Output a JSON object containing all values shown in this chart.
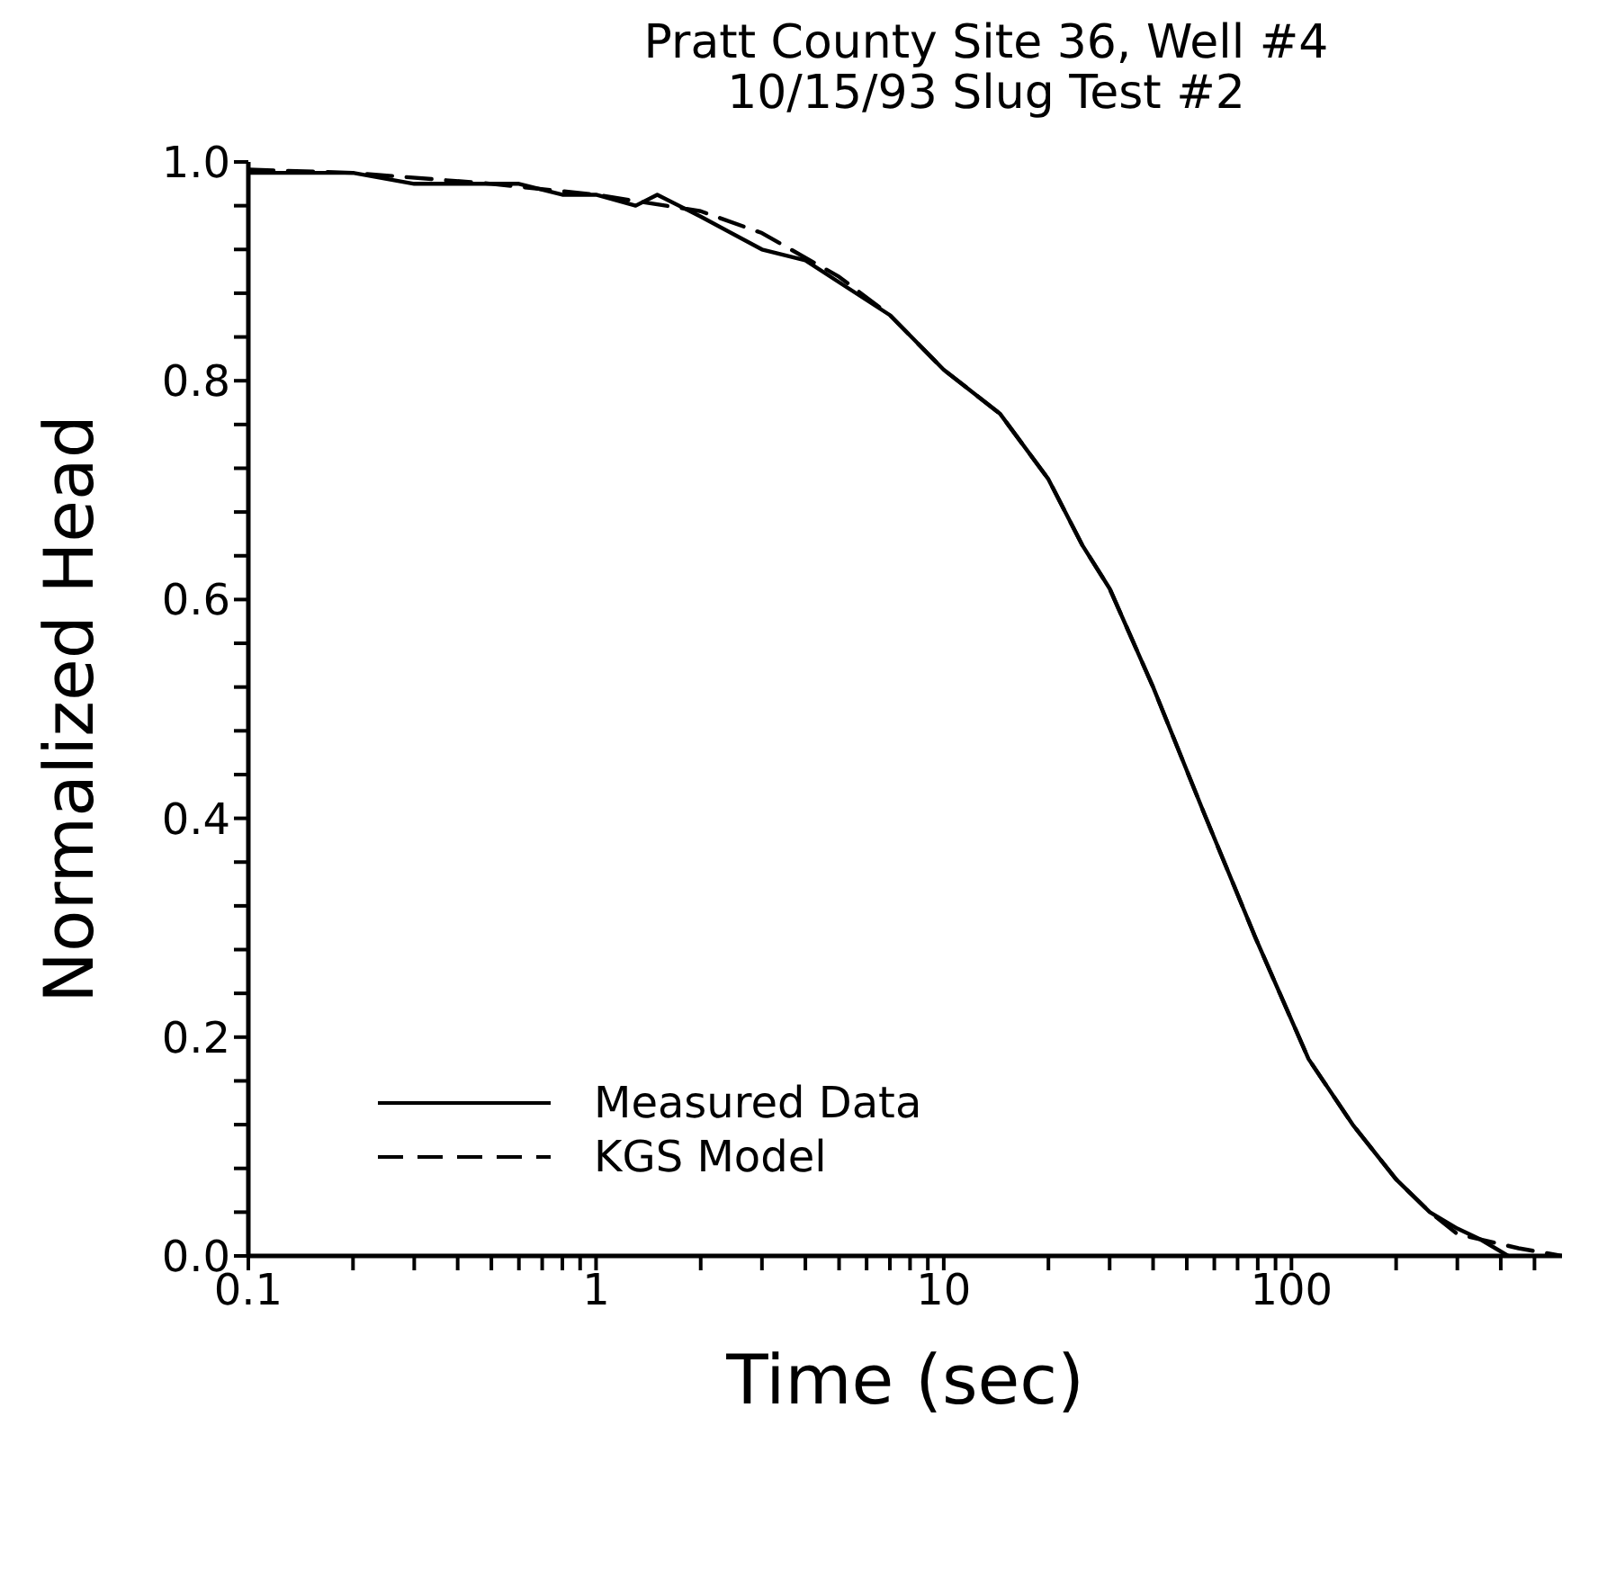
{
  "chart_data": {
    "type": "line",
    "title": "Pratt County Site 36, Well #4",
    "subtitle": "10/15/93 Slug Test #2",
    "xlabel": "Time (sec)",
    "ylabel": "Normalized Head",
    "log": "x",
    "xlim": [
      0.1,
      600
    ],
    "ylim": [
      0,
      1
    ],
    "xticks": [
      0.1,
      {
        "value": 0.2,
        "label": null
      },
      {
        "value": 0.3,
        "label": null
      },
      {
        "value": 0.4,
        "label": null
      },
      {
        "value": 0.5,
        "label": null
      },
      {
        "value": 0.6,
        "label": null
      },
      {
        "value": 0.7,
        "label": null
      },
      {
        "value": 0.8,
        "label": null
      },
      {
        "value": 0.9,
        "label": null
      },
      1,
      {
        "value": 2,
        "label": null
      },
      {
        "value": 3,
        "label": null
      },
      {
        "value": 4,
        "label": null
      },
      {
        "value": 5,
        "label": null
      },
      {
        "value": 6,
        "label": null
      },
      {
        "value": 7,
        "label": null
      },
      {
        "value": 8,
        "label": null
      },
      {
        "value": 9,
        "label": null
      },
      10,
      {
        "value": 20,
        "label": null
      },
      {
        "value": 30,
        "label": null
      },
      {
        "value": 40,
        "label": null
      },
      {
        "value": 50,
        "label": null
      },
      {
        "value": 60,
        "label": null
      },
      {
        "value": 70,
        "label": null
      },
      {
        "value": 80,
        "label": null
      },
      {
        "value": 90,
        "label": null
      },
      100,
      {
        "value": 200,
        "label": null
      },
      {
        "value": 300,
        "label": null
      },
      {
        "value": 400,
        "label": null
      },
      {
        "value": 500,
        "label": null
      }
    ],
    "yticks": [
      {
        "value": 0,
        "label": "0.0"
      },
      {
        "value": 0.04,
        "label": null
      },
      {
        "value": 0.08,
        "label": null
      },
      {
        "value": 0.12,
        "label": null
      },
      {
        "value": 0.16,
        "label": null
      },
      0.2,
      {
        "value": 0.24,
        "label": null
      },
      {
        "value": 0.28,
        "label": null
      },
      {
        "value": 0.32,
        "label": null
      },
      {
        "value": 0.36,
        "label": null
      },
      0.4,
      {
        "value": 0.44,
        "label": null
      },
      {
        "value": 0.48,
        "label": null
      },
      {
        "value": 0.52,
        "label": null
      },
      {
        "value": 0.56,
        "label": null
      },
      0.6,
      {
        "value": 0.64,
        "label": null
      },
      {
        "value": 0.68,
        "label": null
      },
      {
        "value": 0.72,
        "label": null
      },
      {
        "value": 0.76,
        "label": null
      },
      0.8,
      {
        "value": 0.84,
        "label": null
      },
      {
        "value": 0.88,
        "label": null
      },
      {
        "value": 0.92,
        "label": null
      },
      {
        "value": 0.96,
        "label": null
      },
      {
        "value": 1,
        "label": "1.0"
      }
    ],
    "legend": "bottom left",
    "marker": "none",
    "series": [
      {
        "name": "Measured Data",
        "color": "#000000",
        "line_style": "solid",
        "x": [
          0.1,
          0.2,
          0.3,
          0.6,
          0.8,
          1,
          1.3,
          1.5,
          2,
          3,
          4,
          5,
          7,
          10,
          14.5,
          20,
          25,
          30,
          40,
          56,
          79,
          112,
          150,
          200,
          250,
          300,
          350,
          420
        ],
        "values": [
          0.99,
          0.99,
          0.98,
          0.98,
          0.97,
          0.97,
          0.96,
          0.97,
          0.95,
          0.92,
          0.91,
          0.89,
          0.86,
          0.81,
          0.77,
          0.71,
          0.65,
          0.61,
          0.52,
          0.405,
          0.29,
          0.18,
          0.12,
          0.07,
          0.04,
          0.025,
          0.015,
          0
        ]
      },
      {
        "name": "KGS Model",
        "color": "#000000",
        "line_style": "dashed",
        "x": [
          0.1,
          0.2,
          0.5,
          1,
          2,
          3,
          5,
          7,
          10,
          14.5,
          20,
          25,
          30,
          40,
          56,
          79,
          112,
          150,
          200,
          250,
          300,
          450,
          600
        ],
        "values": [
          0.993,
          0.99,
          0.98,
          0.97,
          0.955,
          0.935,
          0.895,
          0.86,
          0.81,
          0.77,
          0.71,
          0.65,
          0.61,
          0.52,
          0.405,
          0.29,
          0.18,
          0.12,
          0.07,
          0.04,
          0.02,
          0.007,
          0
        ]
      }
    ]
  }
}
